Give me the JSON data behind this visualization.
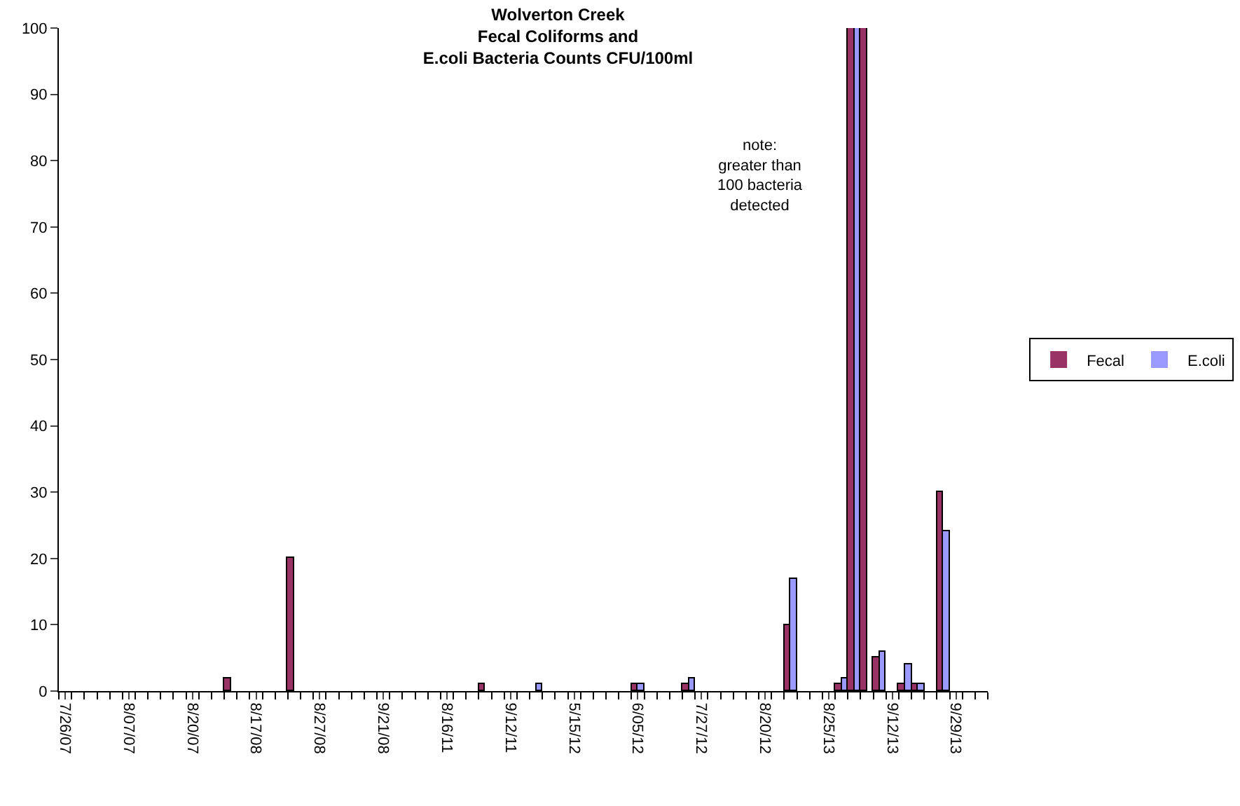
{
  "chart_data": {
    "type": "bar",
    "title": "Wolverton Creek\nFecal Coliforms and\nE.coli Bacteria Counts CFU/100ml",
    "categories": [
      "7/26/07",
      null,
      null,
      null,
      null,
      "8/07/07",
      null,
      null,
      null,
      null,
      "8/20/07",
      null,
      null,
      null,
      null,
      "8/17/08",
      null,
      null,
      null,
      null,
      "8/27/08",
      null,
      null,
      null,
      null,
      "9/21/08",
      null,
      null,
      null,
      null,
      "8/16/11",
      null,
      null,
      null,
      null,
      "9/12/11",
      null,
      null,
      null,
      null,
      "5/15/12",
      null,
      null,
      null,
      null,
      "6/05/12",
      null,
      null,
      null,
      null,
      "7/27/12",
      null,
      null,
      null,
      null,
      "8/20/12",
      null,
      null,
      null,
      null,
      "8/25/13",
      null,
      null,
      null,
      null,
      "9/12/13",
      null,
      null,
      null,
      null,
      "9/29/13",
      null,
      null
    ],
    "series": [
      {
        "name": "Fecal",
        "color": "#993366",
        "values": [
          0,
          0,
          0,
          0,
          0,
          0,
          0,
          0,
          0,
          0,
          0,
          0,
          0,
          2,
          0,
          0,
          0,
          0,
          20,
          0,
          0,
          0,
          0,
          0,
          0,
          0,
          0,
          0,
          0,
          0,
          0,
          0,
          0,
          1,
          0,
          0,
          0,
          0,
          0,
          0,
          0,
          0,
          0,
          0,
          0,
          1,
          0,
          0,
          0,
          1,
          0,
          0,
          0,
          0,
          0,
          0,
          0,
          10,
          0,
          0,
          0,
          1,
          100,
          100,
          5,
          0,
          1,
          1,
          0,
          30,
          0,
          0,
          0
        ]
      },
      {
        "name": "E.coli",
        "color": "#9999ff",
        "values": [
          0,
          0,
          0,
          0,
          0,
          0,
          0,
          0,
          0,
          0,
          0,
          0,
          0,
          0,
          0,
          0,
          0,
          0,
          0,
          0,
          0,
          0,
          0,
          0,
          0,
          0,
          0,
          0,
          0,
          0,
          0,
          0,
          0,
          0,
          0,
          0,
          0,
          1,
          0,
          0,
          0,
          0,
          0,
          0,
          0,
          1,
          0,
          0,
          0,
          2,
          0,
          0,
          0,
          0,
          0,
          0,
          0,
          17,
          0,
          0,
          0,
          2,
          100,
          0,
          6,
          0,
          4,
          1,
          0,
          24,
          0,
          0,
          0
        ]
      }
    ],
    "ylim": [
      0,
      100
    ],
    "yticks": [
      0,
      10,
      20,
      30,
      40,
      50,
      60,
      70,
      80,
      90,
      100
    ],
    "grid": false,
    "legend": "right",
    "annotations": [
      "note:\ngreater than\n100 bacteria\ndetected"
    ]
  }
}
